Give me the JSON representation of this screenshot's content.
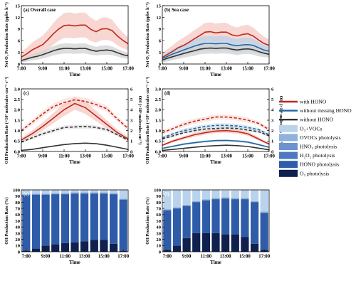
{
  "colors": {
    "with_hono": "#c0281c",
    "with_hono_band": "#f6c9c4",
    "without_missing": "#2467a3",
    "without_missing_band": "#b9d2e8",
    "without_hono": "#333333",
    "without_hono_band": "#d2d2d2",
    "o3_vocs": "#b9d3ec",
    "ovocs": "#8fb1dc",
    "hno3": "#6c93cd",
    "h2o2": "#4f78c0",
    "hono": "#2f5ca9",
    "o3": "#0f1f4e"
  },
  "legend": {
    "items": [
      {
        "label": "with HONO",
        "kind": "line",
        "color_key": "with_hono"
      },
      {
        "label": "without missing HONO",
        "kind": "line",
        "color_key": "without_missing"
      },
      {
        "label": "without HONO",
        "kind": "line",
        "color_key": "without_hono"
      },
      {
        "label": "O₃+VOCs",
        "kind": "box",
        "color_key": "o3_vocs"
      },
      {
        "label": "OVOCs photolysis",
        "kind": "box",
        "color_key": "ovocs"
      },
      {
        "label": "HNO₃ photolysis",
        "kind": "box",
        "color_key": "hno3"
      },
      {
        "label": "H₂O₂ photolysis",
        "kind": "box",
        "color_key": "h2o2"
      },
      {
        "label": "HONO photolysis",
        "kind": "box",
        "color_key": "hono"
      },
      {
        "label": "O₃ photolysis",
        "kind": "box",
        "color_key": "o3"
      }
    ]
  },
  "chart_data": [
    {
      "id": "a",
      "type": "line",
      "tag": "(a) Overall case",
      "ylabel": "Net O₃ Production Rate (ppbv h⁻¹)",
      "xlabel": "Time",
      "x": [
        7,
        7.5,
        8,
        8.5,
        9,
        9.5,
        10,
        10.5,
        11,
        11.5,
        12,
        12.5,
        13,
        13.5,
        14,
        14.5,
        15,
        15.5,
        16,
        16.5,
        17
      ],
      "xticks": [
        "7:00",
        "9:00",
        "11:00",
        "13:00",
        "15:00",
        "17:00"
      ],
      "ylim": [
        0,
        15
      ],
      "yticks": [
        0,
        3,
        6,
        9,
        12,
        15
      ],
      "series": [
        {
          "name": "with HONO",
          "color_key": "with_hono",
          "values": [
            1.8,
            2.6,
            3.6,
            4.3,
            5.0,
            6.3,
            7.8,
            9.0,
            9.9,
            10.0,
            9.8,
            10.0,
            10.0,
            8.9,
            8.3,
            9.0,
            9.1,
            8.6,
            7.2,
            6.1,
            5.2
          ],
          "band": [
            1.3,
            1.6,
            1.9,
            2.1,
            2.3,
            2.5,
            2.8,
            3.0,
            3.2,
            3.3,
            3.2,
            3.2,
            3.2,
            3.0,
            2.8,
            2.9,
            2.9,
            2.8,
            2.4,
            2.0,
            1.7
          ]
        },
        {
          "name": "without HONO",
          "color_key": "without_hono",
          "values": [
            0.9,
            1.3,
            1.7,
            2.0,
            2.4,
            2.9,
            3.4,
            3.8,
            4.0,
            4.0,
            3.9,
            4.0,
            4.0,
            3.6,
            3.3,
            3.5,
            3.6,
            3.4,
            2.9,
            2.4,
            2.1
          ],
          "band": [
            0.6,
            0.7,
            0.8,
            0.9,
            1.0,
            1.1,
            1.2,
            1.3,
            1.3,
            1.3,
            1.3,
            1.3,
            1.3,
            1.2,
            1.1,
            1.2,
            1.2,
            1.1,
            1.0,
            0.9,
            0.8
          ]
        }
      ]
    },
    {
      "id": "b",
      "type": "line",
      "tag": "(b) Sea case",
      "ylabel": "Net O₃ Production Rate (ppbv h⁻¹)",
      "xlabel": "Time",
      "x": [
        7,
        7.5,
        8,
        8.5,
        9,
        9.5,
        10,
        10.5,
        11,
        11.5,
        12,
        12.5,
        13,
        13.5,
        14,
        14.5,
        15,
        15.5,
        16,
        16.5,
        17
      ],
      "xticks": [
        "7:00",
        "9:00",
        "11:00",
        "13:00",
        "15:00",
        "17:00"
      ],
      "ylim": [
        0,
        15
      ],
      "yticks": [
        0,
        3,
        6,
        9,
        12,
        15
      ],
      "series": [
        {
          "name": "with HONO",
          "color_key": "with_hono",
          "values": [
            1.7,
            2.5,
            3.3,
            4.2,
            4.8,
            5.6,
            6.5,
            7.3,
            8.2,
            8.3,
            8.0,
            8.2,
            8.2,
            7.5,
            7.2,
            7.6,
            7.8,
            7.2,
            6.2,
            5.3,
            4.8
          ],
          "band": [
            1.2,
            1.4,
            1.6,
            1.8,
            2.0,
            2.1,
            2.2,
            2.3,
            2.4,
            2.4,
            2.4,
            2.4,
            2.4,
            2.3,
            2.2,
            2.3,
            2.3,
            2.2,
            2.0,
            1.8,
            1.6
          ]
        },
        {
          "name": "without missing HONO",
          "color_key": "without_missing",
          "values": [
            1.4,
            2.0,
            2.6,
            3.1,
            3.6,
            4.1,
            4.6,
            5.0,
            5.3,
            5.3,
            5.2,
            5.3,
            5.3,
            4.9,
            4.7,
            4.9,
            5.0,
            4.8,
            4.2,
            3.6,
            3.3
          ],
          "band": [
            1.0,
            1.1,
            1.3,
            1.4,
            1.5,
            1.6,
            1.7,
            1.8,
            1.9,
            1.9,
            1.9,
            1.9,
            1.9,
            1.8,
            1.7,
            1.8,
            1.8,
            1.7,
            1.5,
            1.3,
            1.2
          ]
        },
        {
          "name": "without HONO",
          "color_key": "without_hono",
          "values": [
            1.0,
            1.5,
            1.9,
            2.3,
            2.7,
            3.1,
            3.4,
            3.8,
            4.0,
            4.1,
            4.0,
            4.1,
            4.1,
            3.8,
            3.6,
            3.8,
            3.9,
            3.7,
            3.2,
            2.8,
            2.5
          ],
          "band": [
            0.7,
            0.8,
            0.9,
            1.0,
            1.1,
            1.2,
            1.3,
            1.3,
            1.4,
            1.4,
            1.4,
            1.4,
            1.4,
            1.3,
            1.3,
            1.3,
            1.3,
            1.3,
            1.2,
            1.0,
            0.9
          ]
        }
      ]
    },
    {
      "id": "c",
      "type": "line",
      "tag": "(c)",
      "ylabel": "OH Production Rate (×10⁷ molecules cm⁻³ s⁻¹)",
      "ylabel_right": "OH (×10⁶ molecules cm⁻³)",
      "xlabel": "Time",
      "x": [
        7,
        8,
        9,
        10,
        11,
        12,
        13,
        14,
        15,
        16,
        17
      ],
      "xticks": [
        "7:00",
        "9:00",
        "11:00",
        "13:00",
        "15:00",
        "17:00"
      ],
      "ylim": [
        0,
        3.0
      ],
      "yticks": [
        0.0,
        0.5,
        1.0,
        1.5,
        2.0,
        2.5,
        3.0
      ],
      "ylim_right": [
        0,
        6
      ],
      "yticks_right": [
        0,
        1,
        2,
        3,
        4,
        5,
        6
      ],
      "series": [
        {
          "name": "with HONO",
          "color_key": "with_hono",
          "axis": "left",
          "style": "solid",
          "values": [
            0.55,
            0.85,
            1.2,
            1.6,
            2.0,
            2.3,
            2.1,
            1.7,
            1.3,
            0.9,
            0.6
          ],
          "band": [
            0.1,
            0.15,
            0.2,
            0.25,
            0.3,
            0.3,
            0.3,
            0.25,
            0.2,
            0.15,
            0.1
          ]
        },
        {
          "name": "without HONO",
          "color_key": "without_hono",
          "axis": "left",
          "style": "solid",
          "values": [
            0.05,
            0.1,
            0.18,
            0.26,
            0.33,
            0.38,
            0.4,
            0.37,
            0.3,
            0.2,
            0.1
          ],
          "band": [
            0,
            0,
            0,
            0,
            0,
            0,
            0,
            0,
            0,
            0,
            0
          ]
        },
        {
          "name": "OH with HONO",
          "color_key": "with_hono",
          "axis": "right",
          "style": "dashed",
          "values": [
            2.0,
            2.8,
            3.6,
            4.3,
            4.7,
            4.95,
            4.8,
            4.5,
            4.1,
            3.1,
            2.2
          ],
          "band": [
            0.2,
            0.25,
            0.3,
            0.3,
            0.35,
            0.35,
            0.35,
            0.3,
            0.3,
            0.25,
            0.2
          ]
        },
        {
          "name": "OH without HONO",
          "color_key": "without_hono",
          "axis": "right",
          "style": "dashed",
          "values": [
            0.9,
            1.3,
            1.7,
            2.0,
            2.3,
            2.35,
            2.4,
            2.3,
            2.1,
            1.6,
            1.1
          ],
          "band": [
            0.15,
            0.15,
            0.2,
            0.2,
            0.2,
            0.2,
            0.2,
            0.2,
            0.2,
            0.15,
            0.15
          ]
        }
      ]
    },
    {
      "id": "d",
      "type": "line",
      "tag": "(d)",
      "ylabel": "OH Production Rate (×10⁷ molecules cm⁻³ s⁻¹)",
      "ylabel_right": "OH (×10⁶ molecules cm⁻³)",
      "xlabel": "Time",
      "x": [
        7,
        8,
        9,
        10,
        11,
        12,
        13,
        14,
        15,
        16,
        17
      ],
      "xticks": [
        "7:00",
        "9:00",
        "11:00",
        "13:00",
        "15:00",
        "17:00"
      ],
      "ylim": [
        0,
        3.0
      ],
      "yticks": [
        0.0,
        0.5,
        1.0,
        1.5,
        2.0,
        2.5,
        3.0
      ],
      "ylim_right": [
        0,
        6
      ],
      "yticks_right": [
        0,
        1,
        2,
        3,
        4,
        5,
        6
      ],
      "series": [
        {
          "name": "with HONO",
          "color_key": "with_hono",
          "axis": "left",
          "style": "solid",
          "values": [
            0.3,
            0.5,
            0.65,
            0.8,
            0.9,
            0.98,
            1.0,
            0.95,
            0.85,
            0.6,
            0.35
          ],
          "band": [
            0.05,
            0.07,
            0.08,
            0.1,
            0.1,
            0.1,
            0.1,
            0.1,
            0.1,
            0.08,
            0.05
          ]
        },
        {
          "name": "without missing HONO",
          "color_key": "without_missing",
          "axis": "left",
          "style": "solid",
          "values": [
            0.15,
            0.25,
            0.35,
            0.42,
            0.48,
            0.52,
            0.53,
            0.5,
            0.45,
            0.33,
            0.2
          ],
          "band": [
            0.03,
            0.04,
            0.05,
            0.05,
            0.05,
            0.05,
            0.05,
            0.05,
            0.05,
            0.04,
            0.03
          ]
        },
        {
          "name": "without HONO",
          "color_key": "without_hono",
          "axis": "left",
          "style": "solid",
          "values": [
            0.05,
            0.1,
            0.15,
            0.2,
            0.25,
            0.28,
            0.3,
            0.28,
            0.24,
            0.16,
            0.08
          ],
          "band": [
            0,
            0,
            0,
            0,
            0,
            0,
            0,
            0,
            0,
            0,
            0
          ]
        },
        {
          "name": "OH with HONO",
          "color_key": "with_hono",
          "axis": "right",
          "style": "dashed",
          "values": [
            1.8,
            2.2,
            2.6,
            2.9,
            3.1,
            3.3,
            3.3,
            3.2,
            3.0,
            2.7,
            2.1
          ],
          "band": [
            0.2,
            0.2,
            0.25,
            0.25,
            0.25,
            0.25,
            0.25,
            0.25,
            0.25,
            0.2,
            0.2
          ]
        },
        {
          "name": "OH without missing HONO",
          "color_key": "without_missing",
          "axis": "right",
          "style": "dashed",
          "values": [
            1.3,
            1.7,
            2.0,
            2.2,
            2.4,
            2.5,
            2.5,
            2.45,
            2.3,
            2.1,
            1.6
          ],
          "band": [
            0.15,
            0.15,
            0.2,
            0.2,
            0.2,
            0.2,
            0.2,
            0.2,
            0.2,
            0.15,
            0.15
          ]
        },
        {
          "name": "OH without HONO",
          "color_key": "without_hono",
          "axis": "right",
          "style": "dashed",
          "values": [
            1.2,
            1.5,
            1.8,
            2.0,
            2.15,
            2.2,
            2.25,
            2.2,
            2.05,
            1.9,
            1.5
          ],
          "band": [
            0.15,
            0.15,
            0.15,
            0.2,
            0.2,
            0.2,
            0.2,
            0.2,
            0.2,
            0.15,
            0.15
          ]
        }
      ]
    },
    {
      "id": "e",
      "type": "bar",
      "stacked": true,
      "tag": "(e)",
      "ylabel": "OH Production Rate (%)",
      "xlabel": "Time",
      "categories": [
        "7:00",
        "8:00",
        "9:00",
        "10:00",
        "11:00",
        "12:00",
        "13:00",
        "14:00",
        "15:00",
        "16:00",
        "17:00"
      ],
      "xticks": [
        "7:00",
        "9:00",
        "11:00",
        "13:00",
        "15:00",
        "17:00"
      ],
      "ylim": [
        0,
        100
      ],
      "yticks": [
        0,
        10,
        20,
        30,
        40,
        50,
        60,
        70,
        80,
        90,
        100
      ],
      "series": [
        {
          "name": "O₃ photolysis",
          "color_key": "o3",
          "values": [
            2,
            5,
            10,
            12,
            14,
            15,
            17,
            19,
            19,
            13,
            2
          ]
        },
        {
          "name": "HONO photolysis",
          "color_key": "hono",
          "values": [
            90,
            87,
            82,
            81,
            79,
            79,
            77,
            75,
            75,
            80,
            82
          ]
        },
        {
          "name": "H₂O₂ photolysis",
          "color_key": "h2o2",
          "values": [
            0.5,
            0.5,
            0.5,
            0.5,
            0.5,
            0.5,
            0.5,
            0.5,
            0.5,
            0.5,
            0.5
          ]
        },
        {
          "name": "HNO₃ photolysis",
          "color_key": "hno3",
          "values": [
            0.5,
            0.5,
            0.5,
            0.5,
            0.5,
            0.5,
            0.5,
            0.5,
            0.5,
            0.5,
            0.5
          ]
        },
        {
          "name": "OVOCs photolysis",
          "color_key": "ovocs",
          "values": [
            1,
            1,
            1,
            1,
            1,
            1,
            1,
            1,
            1,
            1,
            1
          ]
        },
        {
          "name": "O₃+VOCs",
          "color_key": "o3_vocs",
          "values": [
            6,
            6,
            6,
            5,
            5,
            4,
            4,
            4,
            4,
            5,
            14
          ]
        }
      ]
    },
    {
      "id": "f",
      "type": "bar",
      "stacked": true,
      "tag": "(f)",
      "ylabel": "OH Production Rate (%)",
      "xlabel": "Time",
      "categories": [
        "7:00",
        "8:00",
        "9:00",
        "10:00",
        "11:00",
        "12:00",
        "13:00",
        "14:00",
        "15:00",
        "16:00",
        "17:00"
      ],
      "xticks": [
        "7:00",
        "9:00",
        "11:00",
        "13:00",
        "15:00",
        "17:00"
      ],
      "ylim": [
        0,
        100
      ],
      "yticks": [
        0,
        10,
        20,
        30,
        40,
        50,
        60,
        70,
        80,
        90,
        100
      ],
      "series": [
        {
          "name": "O₃ photolysis",
          "color_key": "o3",
          "values": [
            3,
            10,
            22,
            30,
            30,
            30,
            28,
            28,
            24,
            13,
            3
          ]
        },
        {
          "name": "HONO photolysis",
          "color_key": "hono",
          "values": [
            64,
            60,
            52,
            50,
            53,
            55,
            58,
            57,
            61,
            67,
            60
          ]
        },
        {
          "name": "H₂O₂ photolysis",
          "color_key": "h2o2",
          "values": [
            0.5,
            0.5,
            0.5,
            0.5,
            0.5,
            0.5,
            0.5,
            0.5,
            0.5,
            0.5,
            0.5
          ]
        },
        {
          "name": "HNO₃ photolysis",
          "color_key": "hno3",
          "values": [
            0.5,
            0.5,
            0.5,
            0.5,
            0.5,
            0.5,
            0.5,
            0.5,
            0.5,
            0.5,
            0.5
          ]
        },
        {
          "name": "OVOCs photolysis",
          "color_key": "ovocs",
          "values": [
            1,
            1,
            1,
            1,
            1,
            1,
            1,
            1,
            1,
            1,
            1
          ]
        },
        {
          "name": "O₃+VOCs",
          "color_key": "o3_vocs",
          "values": [
            31,
            28,
            24,
            18,
            15,
            13,
            11,
            12,
            13,
            18,
            35
          ]
        }
      ]
    }
  ]
}
